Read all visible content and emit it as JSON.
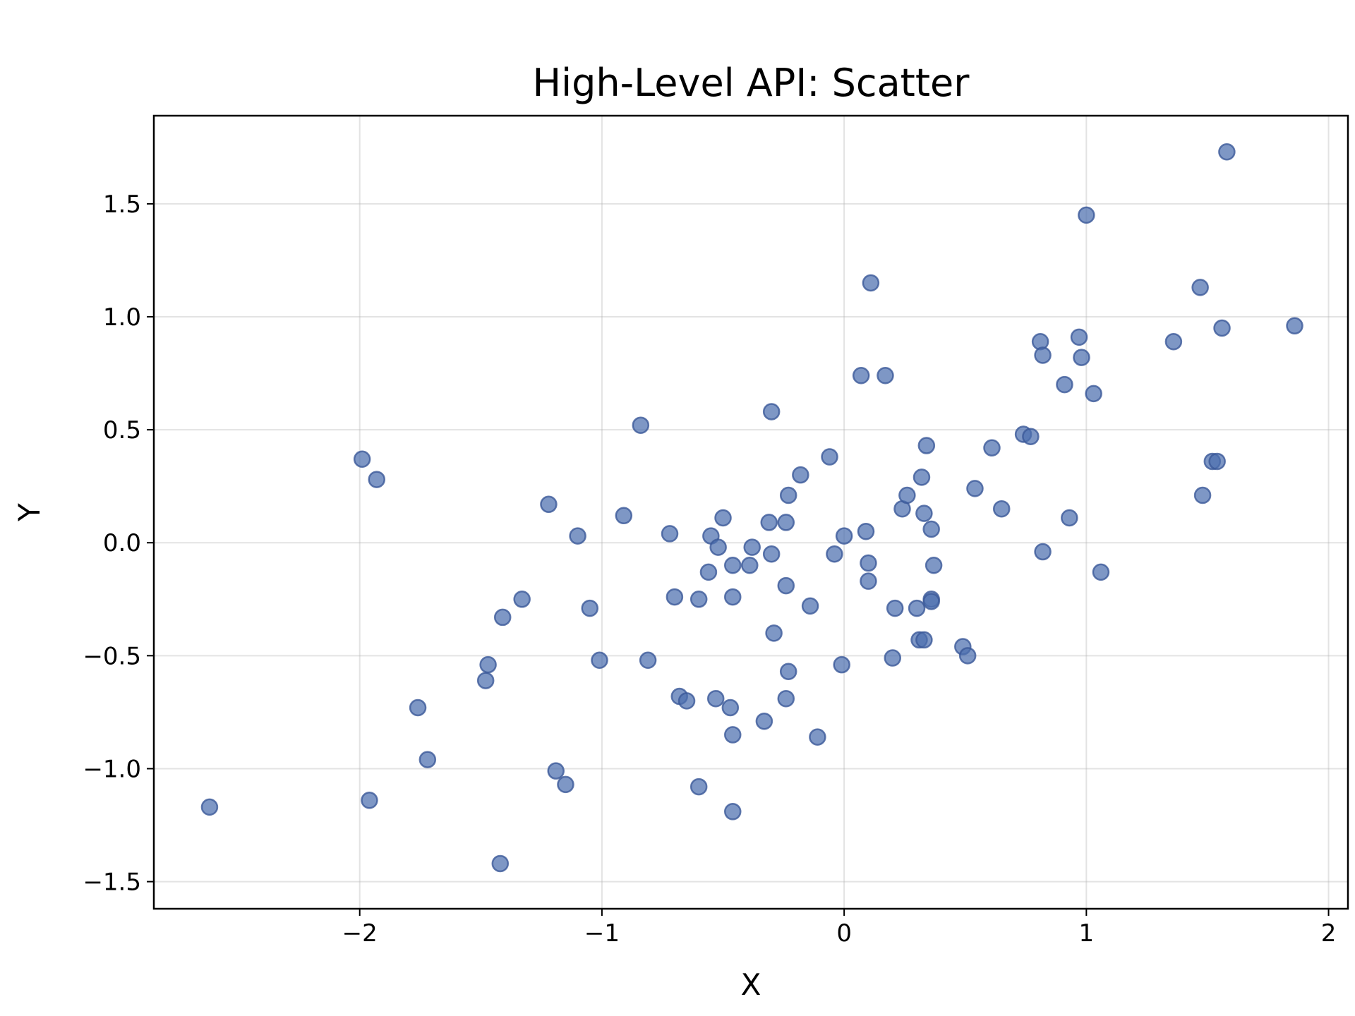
{
  "chart_data": {
    "type": "scatter",
    "title": "High-Level API: Scatter",
    "xlabel": "X",
    "ylabel": "Y",
    "xlim": [
      -2.85,
      2.08
    ],
    "ylim": [
      -1.62,
      1.89
    ],
    "grid": true,
    "x_ticks": [
      -2,
      -1,
      0,
      1,
      2
    ],
    "y_ticks": [
      -1.5,
      -1.0,
      -0.5,
      0.0,
      0.5,
      1.0,
      1.5
    ],
    "x_tick_labels": [
      "−2",
      "−1",
      "0",
      "1",
      "2"
    ],
    "y_tick_labels": [
      "−1.5",
      "−1.0",
      "−0.5",
      "0.0",
      "0.5",
      "1.0",
      "1.5"
    ],
    "marker_color": "#4c6faf",
    "marker_edge_color": "#3b5998",
    "marker_alpha": 0.72,
    "points": [
      [
        -2.62,
        -1.17
      ],
      [
        -1.99,
        0.37
      ],
      [
        -1.93,
        0.28
      ],
      [
        -1.96,
        -1.14
      ],
      [
        -1.76,
        -0.73
      ],
      [
        -1.72,
        -0.96
      ],
      [
        -1.47,
        -0.54
      ],
      [
        -1.48,
        -0.61
      ],
      [
        -1.41,
        -0.33
      ],
      [
        -1.33,
        -0.25
      ],
      [
        -1.42,
        -1.42
      ],
      [
        -1.22,
        0.17
      ],
      [
        -1.19,
        -1.01
      ],
      [
        -1.15,
        -1.07
      ],
      [
        -1.1,
        0.03
      ],
      [
        -1.05,
        -0.29
      ],
      [
        -1.01,
        -0.52
      ],
      [
        -0.91,
        0.12
      ],
      [
        -0.84,
        0.52
      ],
      [
        -0.81,
        -0.52
      ],
      [
        -0.72,
        0.04
      ],
      [
        -0.7,
        -0.24
      ],
      [
        -0.68,
        -0.68
      ],
      [
        -0.65,
        -0.7
      ],
      [
        -0.6,
        -0.25
      ],
      [
        -0.6,
        -1.08
      ],
      [
        -0.56,
        -0.13
      ],
      [
        -0.55,
        0.03
      ],
      [
        -0.53,
        -0.69
      ],
      [
        -0.52,
        -0.02
      ],
      [
        -0.5,
        0.11
      ],
      [
        -0.47,
        -0.73
      ],
      [
        -0.46,
        -0.1
      ],
      [
        -0.46,
        -0.24
      ],
      [
        -0.46,
        -0.85
      ],
      [
        -0.46,
        -1.19
      ],
      [
        -0.38,
        -0.02
      ],
      [
        -0.39,
        -0.1
      ],
      [
        -0.33,
        -0.79
      ],
      [
        -0.31,
        0.09
      ],
      [
        -0.3,
        0.58
      ],
      [
        -0.3,
        -0.05
      ],
      [
        -0.29,
        -0.4
      ],
      [
        -0.24,
        0.09
      ],
      [
        -0.23,
        0.21
      ],
      [
        -0.24,
        -0.19
      ],
      [
        -0.23,
        -0.57
      ],
      [
        -0.24,
        -0.69
      ],
      [
        -0.18,
        0.3
      ],
      [
        -0.14,
        -0.28
      ],
      [
        -0.11,
        -0.86
      ],
      [
        -0.06,
        0.38
      ],
      [
        -0.04,
        -0.05
      ],
      [
        -0.01,
        -0.54
      ],
      [
        0.0,
        0.03
      ],
      [
        0.07,
        0.74
      ],
      [
        0.09,
        0.05
      ],
      [
        0.1,
        -0.09
      ],
      [
        0.1,
        -0.17
      ],
      [
        0.11,
        1.15
      ],
      [
        0.17,
        0.74
      ],
      [
        0.2,
        -0.51
      ],
      [
        0.21,
        -0.29
      ],
      [
        0.24,
        0.15
      ],
      [
        0.26,
        0.21
      ],
      [
        0.3,
        -0.29
      ],
      [
        0.31,
        -0.43
      ],
      [
        0.32,
        0.29
      ],
      [
        0.33,
        0.13
      ],
      [
        0.33,
        -0.43
      ],
      [
        0.34,
        0.43
      ],
      [
        0.36,
        0.06
      ],
      [
        0.36,
        -0.25
      ],
      [
        0.36,
        -0.26
      ],
      [
        0.37,
        -0.1
      ],
      [
        0.49,
        -0.46
      ],
      [
        0.51,
        -0.5
      ],
      [
        0.54,
        0.24
      ],
      [
        0.61,
        0.42
      ],
      [
        0.65,
        0.15
      ],
      [
        0.74,
        0.48
      ],
      [
        0.77,
        0.47
      ],
      [
        0.81,
        0.89
      ],
      [
        0.82,
        0.83
      ],
      [
        0.82,
        -0.04
      ],
      [
        0.91,
        0.7
      ],
      [
        0.93,
        0.11
      ],
      [
        0.97,
        0.91
      ],
      [
        0.98,
        0.82
      ],
      [
        1.0,
        1.45
      ],
      [
        1.03,
        0.66
      ],
      [
        1.06,
        -0.13
      ],
      [
        1.36,
        0.89
      ],
      [
        1.47,
        1.13
      ],
      [
        1.48,
        0.21
      ],
      [
        1.52,
        0.36
      ],
      [
        1.54,
        0.36
      ],
      [
        1.56,
        0.95
      ],
      [
        1.58,
        1.73
      ],
      [
        1.86,
        0.96
      ]
    ]
  }
}
